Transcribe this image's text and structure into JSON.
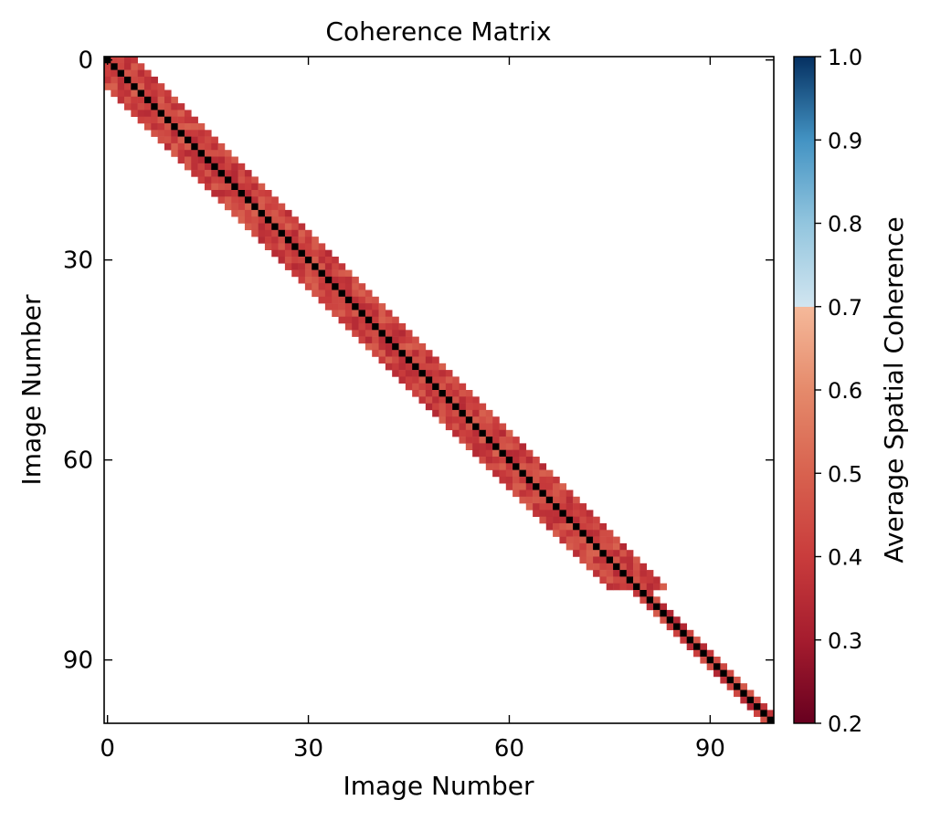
{
  "chart_data": {
    "type": "heatmap",
    "title": "Coherence Matrix",
    "xlabel": "Image Number",
    "ylabel": "Image Number",
    "n_images": 100,
    "xlim": [
      -0.5,
      99.5
    ],
    "ylim": [
      99.5,
      -0.5
    ],
    "x_ticks": [
      0,
      30,
      60,
      90
    ],
    "y_ticks": [
      0,
      30,
      60,
      90
    ],
    "x_tick_labels": [
      "0",
      "30",
      "60",
      "90"
    ],
    "y_tick_labels": [
      "0",
      "30",
      "60",
      "90"
    ],
    "grid": false,
    "colorbar": {
      "label": "Average Spatial Coherence",
      "range": [
        0.2,
        1.0
      ],
      "ticks": [
        0.2,
        0.3,
        0.4,
        0.5,
        0.6,
        0.7,
        0.8,
        0.9,
        1.0
      ],
      "tick_labels": [
        "0.2",
        "0.3",
        "0.4",
        "0.5",
        "0.6",
        "0.7",
        "0.8",
        "0.9",
        "1.0"
      ],
      "colormap": "RdBu",
      "color_stops": [
        {
          "value": 0.2,
          "color": "#67001f"
        },
        {
          "value": 0.3,
          "color": "#a51c2e"
        },
        {
          "value": 0.4,
          "color": "#c93c3c"
        },
        {
          "value": 0.5,
          "color": "#d8624f"
        },
        {
          "value": 0.6,
          "color": "#e58a6b"
        },
        {
          "value": 0.7,
          "color": "#f5b99a"
        },
        {
          "value": 0.7,
          "color": "#d1e5f0"
        },
        {
          "value": 0.8,
          "color": "#92c5de"
        },
        {
          "value": 0.9,
          "color": "#4393c3"
        },
        {
          "value": 1.0,
          "color": "#053061"
        }
      ]
    },
    "diagonal_value": 1.0,
    "diagonal_color": "#000000",
    "bands": [
      {
        "rows": [
          0,
          79
        ],
        "half_width": 4,
        "mean_value": 0.42
      },
      {
        "rows": [
          80,
          99
        ],
        "half_width": 1,
        "mean_value": 0.4
      }
    ],
    "band_value_range": [
      0.3,
      0.6
    ]
  }
}
